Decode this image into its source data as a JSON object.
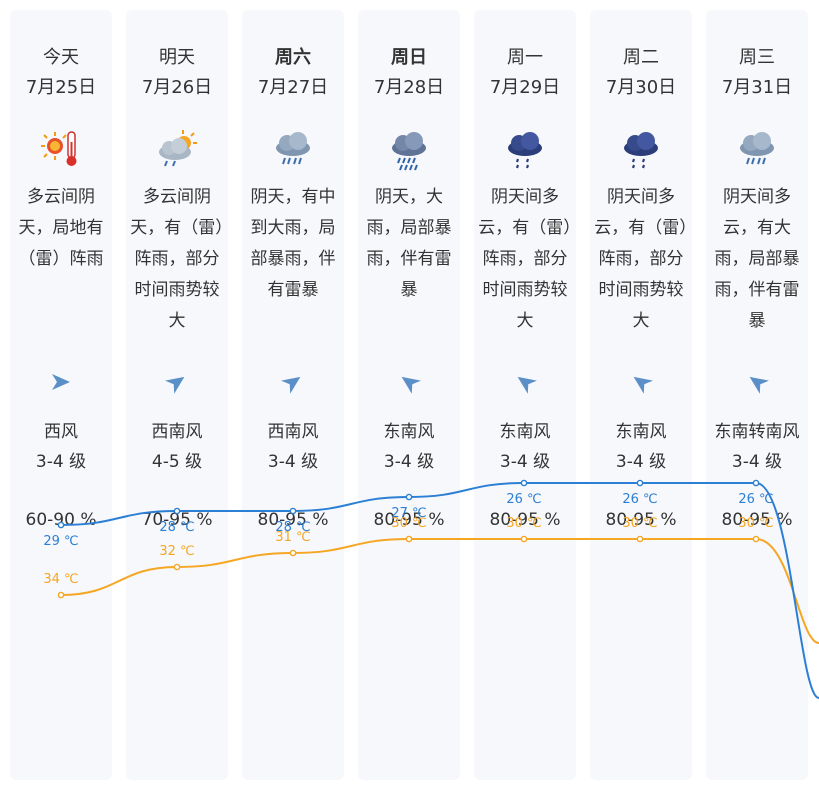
{
  "forecast": [
    {
      "day": "今天",
      "date": "7月25日",
      "bold": false,
      "icon": "partly-cloudy-hot-icon",
      "desc": "多云间阴天，局地有（雷）阵雨",
      "wind_dir": "西风",
      "wind_level": "3-4 级",
      "wind_arrow": "wind-arrow-west-icon",
      "wind_deg": 0,
      "humidity": "60-90 %",
      "high": "34 ℃",
      "low": "29 ℃"
    },
    {
      "day": "明天",
      "date": "7月26日",
      "bold": false,
      "icon": "cloud-sun-rain-icon",
      "desc": "多云间阴天，有（雷）阵雨，部分时间雨势较大",
      "wind_dir": "西南风",
      "wind_level": "4-5 级",
      "wind_arrow": "wind-arrow-southwest-icon",
      "wind_deg": -35,
      "humidity": "70-95 %",
      "high": "32 ℃",
      "low": "28 ℃"
    },
    {
      "day": "周六",
      "date": "7月27日",
      "bold": true,
      "icon": "cloud-heavy-rain-icon",
      "desc": "阴天，有中到大雨，局部暴雨，伴有雷暴",
      "wind_dir": "西南风",
      "wind_level": "3-4 级",
      "wind_arrow": "wind-arrow-southwest-icon",
      "wind_deg": -35,
      "humidity": "80-95 %",
      "high": "31 ℃",
      "low": "28 ℃"
    },
    {
      "day": "周日",
      "date": "7月28日",
      "bold": true,
      "icon": "cloud-rainstorm-icon",
      "desc": "阴天，大雨，局部暴雨，伴有雷暴",
      "wind_dir": "东南风",
      "wind_level": "3-4 级",
      "wind_arrow": "wind-arrow-southeast-icon",
      "wind_deg": -145,
      "humidity": "80-95 %",
      "high": "30 ℃",
      "low": "27 ℃"
    },
    {
      "day": "周一",
      "date": "7月29日",
      "bold": false,
      "icon": "dark-cloud-rain-icon",
      "desc": "阴天间多云，有（雷）阵雨，部分时间雨势较大",
      "wind_dir": "东南风",
      "wind_level": "3-4 级",
      "wind_arrow": "wind-arrow-southeast-icon",
      "wind_deg": -145,
      "humidity": "80-95 %",
      "high": "30 ℃",
      "low": "26 ℃"
    },
    {
      "day": "周二",
      "date": "7月30日",
      "bold": false,
      "icon": "dark-cloud-rain-icon",
      "desc": "阴天间多云，有（雷）阵雨，部分时间雨势较大",
      "wind_dir": "东南风",
      "wind_level": "3-4 级",
      "wind_arrow": "wind-arrow-southeast-icon",
      "wind_deg": -145,
      "humidity": "80-95 %",
      "high": "30 ℃",
      "low": "26 ℃"
    },
    {
      "day": "周三",
      "date": "7月31日",
      "bold": false,
      "icon": "cloud-heavy-rain-icon",
      "desc": "阴天间多云，有大雨，局部暴雨，伴有雷暴",
      "wind_dir": "东南转南风",
      "wind_level": "3-4 级",
      "wind_arrow": "wind-arrow-southeast-icon",
      "wind_deg": -145,
      "humidity": "80-95 %",
      "high": "30 ℃",
      "low": "26 ℃"
    }
  ],
  "chart_data": {
    "type": "line",
    "categories": [
      "7月25日",
      "7月26日",
      "7月27日",
      "7月28日",
      "7月29日",
      "7月30日",
      "7月31日"
    ],
    "series": [
      {
        "name": "high",
        "values": [
          34,
          32,
          31,
          30,
          30,
          30,
          30
        ],
        "color": "#f5a623"
      },
      {
        "name": "low",
        "values": [
          29,
          28,
          28,
          27,
          26,
          26,
          26
        ],
        "color": "#2b7fd4"
      }
    ],
    "unit": "℃"
  }
}
